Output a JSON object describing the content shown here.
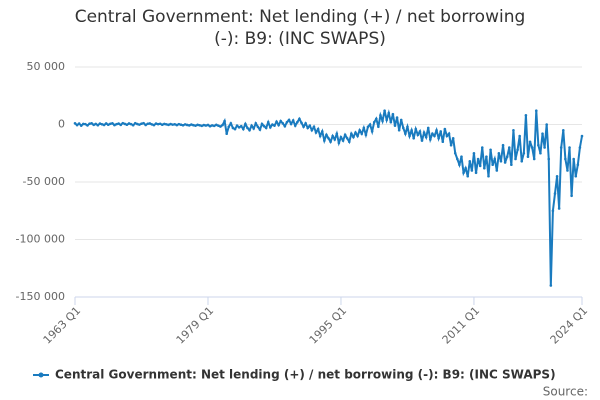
{
  "chart_data": {
    "type": "line",
    "title": "Central Government: Net lending (+) / net borrowing (-): B9: (INC SWAPS)",
    "source": "Source:",
    "categories": [
      "1963 Q1",
      null,
      null,
      null,
      null,
      null,
      null,
      null,
      null,
      null,
      null,
      null,
      null,
      null,
      null,
      null,
      null,
      null,
      null,
      null,
      null,
      null,
      null,
      null,
      null,
      null,
      null,
      null,
      null,
      null,
      null,
      null,
      null,
      null,
      null,
      null,
      null,
      null,
      null,
      null,
      null,
      null,
      null,
      null,
      null,
      null,
      null,
      null,
      null,
      null,
      null,
      null,
      null,
      null,
      null,
      null,
      null,
      null,
      null,
      null,
      null,
      null,
      null,
      null,
      "1979 Q1",
      null,
      null,
      null,
      null,
      null,
      null,
      null,
      null,
      null,
      null,
      null,
      null,
      null,
      null,
      null,
      null,
      null,
      null,
      null,
      null,
      null,
      null,
      null,
      null,
      null,
      null,
      null,
      null,
      null,
      null,
      null,
      null,
      null,
      null,
      null,
      null,
      null,
      null,
      null,
      null,
      null,
      null,
      null,
      null,
      null,
      null,
      null,
      null,
      null,
      null,
      null,
      null,
      null,
      null,
      null,
      null,
      null,
      null,
      null,
      null,
      null,
      null,
      null,
      "1995 Q1",
      null,
      null,
      null,
      null,
      null,
      null,
      null,
      null,
      null,
      null,
      null,
      null,
      null,
      null,
      null,
      null,
      null,
      null,
      null,
      null,
      null,
      null,
      null,
      null,
      null,
      null,
      null,
      null,
      null,
      null,
      null,
      null,
      null,
      null,
      null,
      null,
      null,
      null,
      null,
      null,
      null,
      null,
      null,
      null,
      null,
      null,
      null,
      null,
      null,
      null,
      null,
      null,
      null,
      null,
      null,
      null,
      null,
      null,
      null,
      null,
      null,
      null,
      null,
      "2011 Q1",
      null,
      null,
      null,
      null,
      null,
      null,
      null,
      null,
      null,
      null,
      null,
      null,
      null,
      null,
      null,
      null,
      null,
      null,
      null,
      null,
      null,
      null,
      null,
      null,
      null,
      null,
      null,
      null,
      null,
      null,
      null,
      null,
      null,
      null,
      null,
      null,
      null,
      null,
      null,
      null,
      null,
      null,
      null,
      null,
      null,
      null,
      null,
      null,
      null,
      null,
      null,
      "2024 Q1"
    ],
    "series": [
      {
        "name": "Central Government: Net lending (+) / net borrowing (-): B9: (INC SWAPS)",
        "color": "#1a7bbf",
        "values": [
          1000,
          -500,
          800,
          -1000,
          500,
          300,
          -800,
          700,
          1000,
          -300,
          500,
          -600,
          800,
          200,
          -400,
          900,
          -200,
          600,
          1000,
          -500,
          300,
          800,
          -300,
          1200,
          500,
          -200,
          900,
          300,
          -600,
          1100,
          400,
          -100,
          700,
          1200,
          -400,
          600,
          900,
          100,
          -500,
          800,
          300,
          600,
          -200,
          500,
          100,
          -300,
          400,
          -100,
          200,
          -500,
          300,
          -200,
          -700,
          100,
          -400,
          -800,
          0,
          -600,
          -1000,
          -300,
          -700,
          -1200,
          -500,
          -900,
          -400,
          -1500,
          -800,
          -1200,
          -300,
          -1000,
          -1800,
          -500,
          3000,
          -8000,
          -2000,
          1000,
          -3000,
          -4000,
          -1000,
          -2500,
          -1500,
          -4000,
          500,
          -3000,
          -5000,
          -1000,
          -3500,
          1000,
          -2000,
          -4500,
          500,
          -1500,
          -3000,
          2000,
          -2500,
          0,
          -1000,
          2500,
          -500,
          3000,
          1000,
          -1500,
          2000,
          4000,
          500,
          3500,
          -1000,
          2000,
          5000,
          1500,
          -2000,
          1000,
          -3000,
          -1000,
          -5000,
          -2000,
          -7000,
          -4000,
          -10000,
          -6000,
          -14000,
          -9000,
          -12000,
          -15000,
          -10000,
          -13000,
          -8000,
          -16000,
          -11000,
          -14000,
          -9000,
          -12000,
          -15000,
          -8000,
          -11000,
          -7000,
          -10000,
          -5000,
          -8000,
          -3000,
          -9000,
          -2000,
          0,
          -6000,
          2000,
          5000,
          -2000,
          8000,
          3000,
          12000,
          4000,
          10000,
          2000,
          9000,
          -1000,
          6000,
          -5000,
          4000,
          -3000,
          -8000,
          -2000,
          -10000,
          -5000,
          -12000,
          -4000,
          -9000,
          -6000,
          -14000,
          -7000,
          -11000,
          -3000,
          -13000,
          -8000,
          -10000,
          -5000,
          -12000,
          -6000,
          -15000,
          -4000,
          -10000,
          -8000,
          -18000,
          -12000,
          -25000,
          -30000,
          -35000,
          -28000,
          -42000,
          -38000,
          -45000,
          -32000,
          -40000,
          -25000,
          -42000,
          -30000,
          -36000,
          -20000,
          -38000,
          -28000,
          -45000,
          -22000,
          -35000,
          -30000,
          -40000,
          -25000,
          -32000,
          -18000,
          -33000,
          -28000,
          -20000,
          -35000,
          -5000,
          -30000,
          -22000,
          -10000,
          -32000,
          -25000,
          8000,
          -28000,
          -15000,
          -20000,
          -30000,
          12000,
          -18000,
          -25000,
          -8000,
          -20000,
          0,
          -30000,
          -140000,
          -75000,
          -60000,
          -45000,
          -73000,
          -20000,
          -5000,
          -30000,
          -40000,
          -20000,
          -62000,
          -30000,
          -45000,
          -35000,
          -20000,
          -10000
        ]
      }
    ],
    "ylim": [
      -150000,
      50000
    ],
    "yticks": [
      {
        "value": -150000,
        "label": "-150 000"
      },
      {
        "value": -100000,
        "label": "-100 000"
      },
      {
        "value": -50000,
        "label": "-50 000"
      },
      0,
      {
        "value": 50000,
        "label": "50 000"
      }
    ],
    "grid": true
  }
}
